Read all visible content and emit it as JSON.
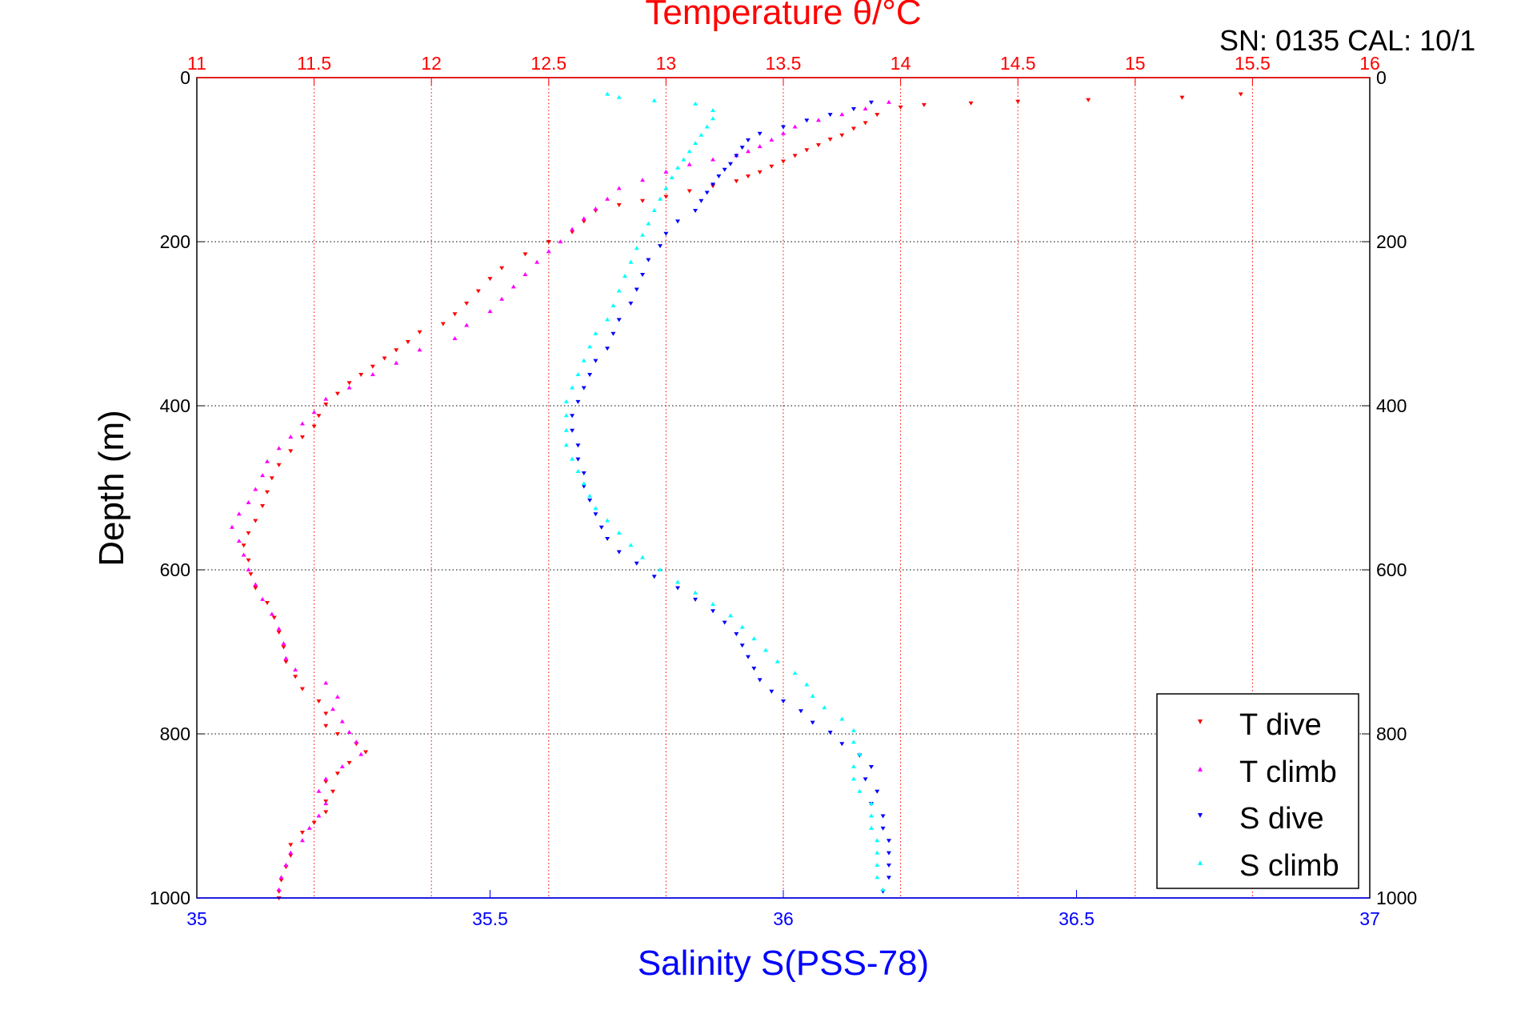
{
  "header": {
    "serial_calibration": "SN: 0135  CAL: 10/1"
  },
  "chart_data": {
    "type": "scatter",
    "title": "Temperature θ/°C",
    "xlabel_bottom": "Salinity S(PSS-78)",
    "xlabel_top": "Temperature θ/°C",
    "ylabel": "Depth (m)",
    "ylim": [
      1000,
      0
    ],
    "xlim_bottom": [
      35,
      37
    ],
    "xlim_top": [
      11,
      16
    ],
    "yticks": [
      0,
      200,
      400,
      600,
      800,
      1000
    ],
    "yticklabels": [
      "0",
      "200",
      "400",
      "600",
      "800",
      "1000"
    ],
    "xticks_bottom": [
      35,
      35.5,
      36,
      36.5,
      37
    ],
    "xticklabels_bottom": [
      "35",
      "35.5",
      "36",
      "36.5",
      "37"
    ],
    "xticks_top": [
      11,
      11.5,
      12,
      12.5,
      13,
      13.5,
      14,
      14.5,
      15,
      15.5,
      16
    ],
    "xticklabels_top": [
      "11",
      "11.5",
      "12",
      "12.5",
      "13",
      "13.5",
      "14",
      "14.5",
      "15",
      "15.5",
      "16"
    ],
    "grid": true,
    "legend_position": "bottom-right",
    "colors": {
      "temperature_axis": "#ff0000",
      "salinity_axis": "#0000ff",
      "T_dive": "#ff0000",
      "T_climb": "#ff00ff",
      "S_dive": "#0000ff",
      "S_climb": "#00ffff"
    },
    "series": [
      {
        "name": "T dive",
        "axis": "top",
        "marker": "triangle-down",
        "color": "#ff0000",
        "points": [
          [
            15.45,
            20
          ],
          [
            15.2,
            24
          ],
          [
            14.8,
            27
          ],
          [
            14.5,
            29
          ],
          [
            14.3,
            31
          ],
          [
            14.1,
            33
          ],
          [
            14.0,
            36
          ],
          [
            13.9,
            45
          ],
          [
            13.85,
            55
          ],
          [
            13.8,
            62
          ],
          [
            13.75,
            70
          ],
          [
            13.7,
            75
          ],
          [
            13.65,
            82
          ],
          [
            13.6,
            88
          ],
          [
            13.55,
            95
          ],
          [
            13.5,
            102
          ],
          [
            13.45,
            108
          ],
          [
            13.4,
            115
          ],
          [
            13.35,
            120
          ],
          [
            13.3,
            126
          ],
          [
            13.2,
            132
          ],
          [
            13.1,
            138
          ],
          [
            13.0,
            145
          ],
          [
            12.9,
            150
          ],
          [
            12.8,
            155
          ],
          [
            12.7,
            162
          ],
          [
            12.65,
            175
          ],
          [
            12.6,
            188
          ],
          [
            12.5,
            200
          ],
          [
            12.4,
            215
          ],
          [
            12.3,
            232
          ],
          [
            12.25,
            245
          ],
          [
            12.2,
            260
          ],
          [
            12.15,
            275
          ],
          [
            12.1,
            288
          ],
          [
            12.05,
            300
          ],
          [
            11.95,
            310
          ],
          [
            11.9,
            322
          ],
          [
            11.85,
            332
          ],
          [
            11.8,
            342
          ],
          [
            11.75,
            352
          ],
          [
            11.7,
            362
          ],
          [
            11.65,
            372
          ],
          [
            11.6,
            385
          ],
          [
            11.55,
            398
          ],
          [
            11.52,
            412
          ],
          [
            11.5,
            425
          ],
          [
            11.45,
            438
          ],
          [
            11.4,
            455
          ],
          [
            11.35,
            472
          ],
          [
            11.32,
            488
          ],
          [
            11.3,
            505
          ],
          [
            11.28,
            522
          ],
          [
            11.25,
            540
          ],
          [
            11.22,
            555
          ],
          [
            11.2,
            570
          ],
          [
            11.22,
            588
          ],
          [
            11.23,
            605
          ],
          [
            11.25,
            622
          ],
          [
            11.3,
            640
          ],
          [
            11.33,
            658
          ],
          [
            11.35,
            676
          ],
          [
            11.37,
            694
          ],
          [
            11.38,
            712
          ],
          [
            11.42,
            730
          ],
          [
            11.45,
            745
          ],
          [
            11.52,
            760
          ],
          [
            11.55,
            775
          ],
          [
            11.55,
            790
          ],
          [
            11.6,
            800
          ],
          [
            11.68,
            812
          ],
          [
            11.72,
            822
          ],
          [
            11.65,
            835
          ],
          [
            11.6,
            848
          ],
          [
            11.55,
            858
          ],
          [
            11.58,
            870
          ],
          [
            11.55,
            882
          ],
          [
            11.55,
            895
          ],
          [
            11.5,
            908
          ],
          [
            11.45,
            920
          ],
          [
            11.4,
            935
          ],
          [
            11.4,
            948
          ],
          [
            11.38,
            962
          ],
          [
            11.36,
            978
          ],
          [
            11.35,
            992
          ],
          [
            11.35,
            1000
          ]
        ]
      },
      {
        "name": "T climb",
        "axis": "top",
        "marker": "triangle-up",
        "color": "#ff00ff",
        "points": [
          [
            13.95,
            30
          ],
          [
            13.85,
            38
          ],
          [
            13.75,
            45
          ],
          [
            13.65,
            52
          ],
          [
            13.55,
            60
          ],
          [
            13.5,
            68
          ],
          [
            13.45,
            76
          ],
          [
            13.4,
            84
          ],
          [
            13.35,
            90
          ],
          [
            13.3,
            95
          ],
          [
            13.2,
            100
          ],
          [
            13.1,
            106
          ],
          [
            13.0,
            115
          ],
          [
            12.9,
            125
          ],
          [
            12.8,
            135
          ],
          [
            12.75,
            148
          ],
          [
            12.7,
            160
          ],
          [
            12.65,
            172
          ],
          [
            12.6,
            185
          ],
          [
            12.55,
            200
          ],
          [
            12.5,
            212
          ],
          [
            12.45,
            225
          ],
          [
            12.4,
            240
          ],
          [
            12.35,
            255
          ],
          [
            12.3,
            270
          ],
          [
            12.25,
            285
          ],
          [
            12.15,
            302
          ],
          [
            12.1,
            318
          ],
          [
            11.95,
            332
          ],
          [
            11.85,
            348
          ],
          [
            11.75,
            362
          ],
          [
            11.65,
            378
          ],
          [
            11.55,
            392
          ],
          [
            11.5,
            408
          ],
          [
            11.45,
            422
          ],
          [
            11.4,
            438
          ],
          [
            11.35,
            452
          ],
          [
            11.3,
            468
          ],
          [
            11.28,
            485
          ],
          [
            11.25,
            502
          ],
          [
            11.22,
            518
          ],
          [
            11.18,
            532
          ],
          [
            11.15,
            548
          ],
          [
            11.18,
            565
          ],
          [
            11.2,
            582
          ],
          [
            11.22,
            600
          ],
          [
            11.25,
            618
          ],
          [
            11.28,
            636
          ],
          [
            11.32,
            654
          ],
          [
            11.35,
            672
          ],
          [
            11.37,
            690
          ],
          [
            11.38,
            708
          ],
          [
            11.42,
            722
          ],
          [
            11.55,
            738
          ],
          [
            11.6,
            755
          ],
          [
            11.58,
            770
          ],
          [
            11.62,
            785
          ],
          [
            11.65,
            798
          ],
          [
            11.68,
            810
          ],
          [
            11.7,
            825
          ],
          [
            11.62,
            840
          ],
          [
            11.55,
            855
          ],
          [
            11.52,
            870
          ],
          [
            11.55,
            885
          ],
          [
            11.52,
            900
          ],
          [
            11.48,
            915
          ],
          [
            11.45,
            930
          ],
          [
            11.4,
            945
          ],
          [
            11.38,
            960
          ],
          [
            11.36,
            975
          ],
          [
            11.35,
            990
          ]
        ]
      },
      {
        "name": "S dive",
        "axis": "bottom",
        "marker": "triangle-down",
        "color": "#0000ff",
        "points": [
          [
            36.15,
            30
          ],
          [
            36.12,
            38
          ],
          [
            36.08,
            45
          ],
          [
            36.04,
            52
          ],
          [
            36.0,
            60
          ],
          [
            35.96,
            68
          ],
          [
            35.94,
            76
          ],
          [
            35.93,
            85
          ],
          [
            35.92,
            95
          ],
          [
            35.91,
            105
          ],
          [
            35.9,
            112
          ],
          [
            35.89,
            120
          ],
          [
            35.88,
            130
          ],
          [
            35.87,
            140
          ],
          [
            35.86,
            150
          ],
          [
            35.85,
            162
          ],
          [
            35.82,
            175
          ],
          [
            35.8,
            190
          ],
          [
            35.79,
            205
          ],
          [
            35.77,
            222
          ],
          [
            35.76,
            240
          ],
          [
            35.75,
            258
          ],
          [
            35.74,
            275
          ],
          [
            35.72,
            295
          ],
          [
            35.71,
            312
          ],
          [
            35.7,
            330
          ],
          [
            35.68,
            345
          ],
          [
            35.67,
            362
          ],
          [
            35.66,
            378
          ],
          [
            35.65,
            395
          ],
          [
            35.64,
            412
          ],
          [
            35.64,
            430
          ],
          [
            35.65,
            448
          ],
          [
            35.65,
            465
          ],
          [
            35.66,
            482
          ],
          [
            35.66,
            498
          ],
          [
            35.67,
            515
          ],
          [
            35.68,
            532
          ],
          [
            35.69,
            548
          ],
          [
            35.7,
            562
          ],
          [
            35.72,
            578
          ],
          [
            35.75,
            592
          ],
          [
            35.78,
            608
          ],
          [
            35.82,
            622
          ],
          [
            35.85,
            636
          ],
          [
            35.88,
            650
          ],
          [
            35.9,
            664
          ],
          [
            35.92,
            678
          ],
          [
            35.93,
            692
          ],
          [
            35.94,
            706
          ],
          [
            35.95,
            720
          ],
          [
            35.96,
            734
          ],
          [
            35.98,
            748
          ],
          [
            36.0,
            760
          ],
          [
            36.03,
            772
          ],
          [
            36.05,
            786
          ],
          [
            36.08,
            798
          ],
          [
            36.1,
            812
          ],
          [
            36.13,
            826
          ],
          [
            36.15,
            840
          ],
          [
            36.14,
            855
          ],
          [
            36.16,
            870
          ],
          [
            36.15,
            885
          ],
          [
            36.17,
            900
          ],
          [
            36.17,
            915
          ],
          [
            36.18,
            930
          ],
          [
            36.18,
            945
          ],
          [
            36.18,
            960
          ],
          [
            36.18,
            975
          ],
          [
            36.17,
            992
          ]
        ]
      },
      {
        "name": "S climb",
        "axis": "bottom",
        "marker": "triangle-up",
        "color": "#00ffff",
        "points": [
          [
            35.7,
            20
          ],
          [
            35.72,
            24
          ],
          [
            35.78,
            28
          ],
          [
            35.85,
            32
          ],
          [
            35.88,
            40
          ],
          [
            35.88,
            50
          ],
          [
            35.87,
            60
          ],
          [
            35.86,
            70
          ],
          [
            35.85,
            80
          ],
          [
            35.84,
            90
          ],
          [
            35.83,
            100
          ],
          [
            35.82,
            110
          ],
          [
            35.81,
            122
          ],
          [
            35.8,
            135
          ],
          [
            35.79,
            148
          ],
          [
            35.78,
            162
          ],
          [
            35.77,
            178
          ],
          [
            35.76,
            192
          ],
          [
            35.75,
            208
          ],
          [
            35.74,
            225
          ],
          [
            35.73,
            242
          ],
          [
            35.72,
            260
          ],
          [
            35.71,
            278
          ],
          [
            35.7,
            295
          ],
          [
            35.68,
            312
          ],
          [
            35.67,
            328
          ],
          [
            35.66,
            345
          ],
          [
            35.65,
            362
          ],
          [
            35.64,
            378
          ],
          [
            35.63,
            395
          ],
          [
            35.63,
            412
          ],
          [
            35.63,
            430
          ],
          [
            35.63,
            448
          ],
          [
            35.64,
            465
          ],
          [
            35.65,
            480
          ],
          [
            35.66,
            495
          ],
          [
            35.67,
            510
          ],
          [
            35.68,
            525
          ],
          [
            35.7,
            540
          ],
          [
            35.72,
            555
          ],
          [
            35.74,
            570
          ],
          [
            35.76,
            585
          ],
          [
            35.79,
            600
          ],
          [
            35.82,
            615
          ],
          [
            35.85,
            628
          ],
          [
            35.88,
            642
          ],
          [
            35.91,
            656
          ],
          [
            35.93,
            670
          ],
          [
            35.95,
            684
          ],
          [
            35.97,
            698
          ],
          [
            35.99,
            712
          ],
          [
            36.02,
            726
          ],
          [
            36.04,
            740
          ],
          [
            36.05,
            754
          ],
          [
            36.07,
            768
          ],
          [
            36.1,
            782
          ],
          [
            36.12,
            796
          ],
          [
            36.12,
            810
          ],
          [
            36.13,
            825
          ],
          [
            36.12,
            840
          ],
          [
            36.12,
            855
          ],
          [
            36.13,
            870
          ],
          [
            36.15,
            885
          ],
          [
            36.15,
            900
          ],
          [
            36.15,
            915
          ],
          [
            36.16,
            930
          ],
          [
            36.16,
            945
          ],
          [
            36.16,
            960
          ],
          [
            36.16,
            975
          ],
          [
            36.17,
            990
          ]
        ]
      }
    ]
  }
}
